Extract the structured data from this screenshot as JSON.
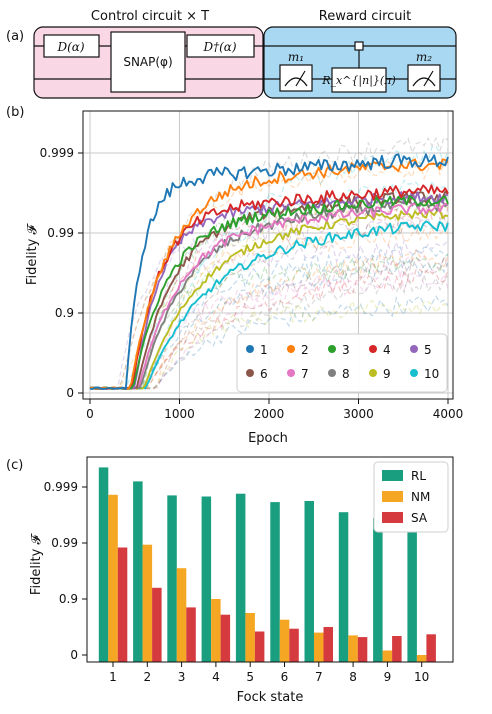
{
  "panel_a": {
    "panel_label": "(a)",
    "control_title": "Control circuit × T",
    "reward_title": "Reward circuit",
    "gate_displacement": "D(α)",
    "gate_snap": "SNAP(φ)",
    "gate_displacement_dagger": "D†(α)",
    "gate_rotation": "R_x^{|n|}(π)",
    "meas1": "m₁",
    "meas2": "m₂"
  },
  "chart_data": [
    {
      "type": "line",
      "panel_label": "(b)",
      "xlabel": "Epoch",
      "ylabel": "Fidelity  𝓕",
      "xlim": [
        0,
        4000
      ],
      "xticks": [
        0,
        1000,
        2000,
        3000,
        4000
      ],
      "y_scale": "log(1-F)",
      "yticks": [
        "0",
        "0.9",
        "0.99",
        "0.999"
      ],
      "grid": true,
      "legend_placement": "bottom-right",
      "series": [
        {
          "name": "1",
          "color": "#1f77b4",
          "onset": 400,
          "final_nines": 3.0,
          "ramp": 180,
          "noise": 0.09
        },
        {
          "name": "2",
          "color": "#ff7f0e",
          "onset": 450,
          "final_nines": 2.95,
          "ramp": 400,
          "noise": 0.08
        },
        {
          "name": "3",
          "color": "#2ca02c",
          "onset": 480,
          "final_nines": 2.5,
          "ramp": 380,
          "noise": 0.07
        },
        {
          "name": "4",
          "color": "#d62728",
          "onset": 470,
          "final_nines": 2.62,
          "ramp": 300,
          "noise": 0.08
        },
        {
          "name": "5",
          "color": "#9467bd",
          "onset": 500,
          "final_nines": 2.55,
          "ramp": 280,
          "noise": 0.07
        },
        {
          "name": "6",
          "color": "#8c564b",
          "onset": 520,
          "final_nines": 2.55,
          "ramp": 420,
          "noise": 0.07
        },
        {
          "name": "7",
          "color": "#e377c2",
          "onset": 540,
          "final_nines": 2.4,
          "ramp": 450,
          "noise": 0.07
        },
        {
          "name": "8",
          "color": "#7f7f7f",
          "onset": 560,
          "final_nines": 2.45,
          "ramp": 500,
          "noise": 0.07
        },
        {
          "name": "9",
          "color": "#bcbd22",
          "onset": 600,
          "final_nines": 2.35,
          "ramp": 600,
          "noise": 0.06
        },
        {
          "name": "10",
          "color": "#17becf",
          "onset": 620,
          "final_nines": 2.2,
          "ramp": 650,
          "noise": 0.07
        }
      ]
    },
    {
      "type": "bar",
      "panel_label": "(c)",
      "xlabel": "Fock state",
      "ylabel": "Fidelity  𝓕",
      "categories": [
        "1",
        "2",
        "3",
        "4",
        "5",
        "6",
        "7",
        "8",
        "9",
        "10"
      ],
      "y_scale": "log(1-F)",
      "yticks": [
        "0",
        "0.9",
        "0.99",
        "0.999"
      ],
      "legend_placement": "top-right",
      "series": [
        {
          "name": "RL",
          "color": "#1a9e80",
          "nines": [
            3.35,
            3.1,
            2.85,
            2.83,
            2.88,
            2.73,
            2.75,
            2.55,
            2.45,
            2.45
          ]
        },
        {
          "name": "NM",
          "color": "#f5a623",
          "nines": [
            2.86,
            1.97,
            1.55,
            1.0,
            0.75,
            0.63,
            0.4,
            0.35,
            0.08,
            0.0
          ]
        },
        {
          "name": "SA",
          "color": "#d53a3f",
          "nines": [
            1.92,
            1.2,
            0.85,
            0.72,
            0.42,
            0.47,
            0.5,
            0.32,
            0.34,
            0.37
          ]
        }
      ]
    }
  ]
}
